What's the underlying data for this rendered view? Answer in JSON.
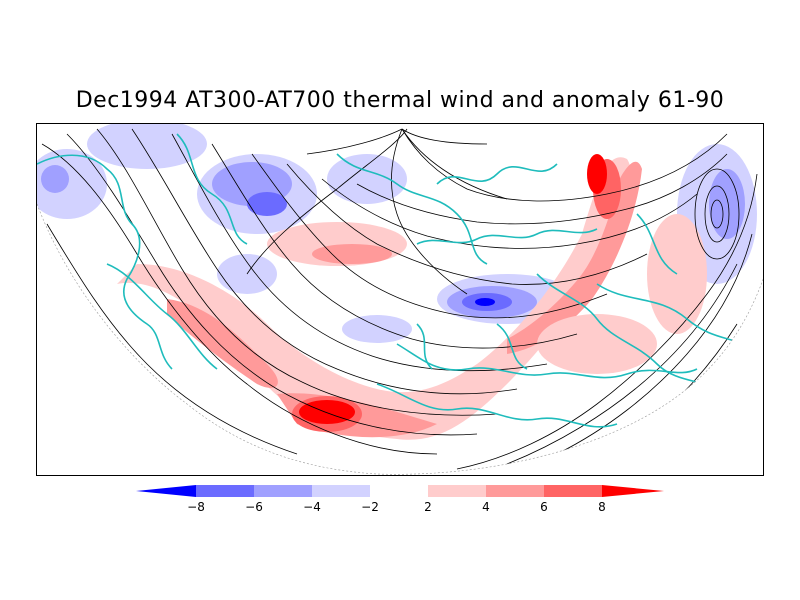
{
  "title": "Dec1994 AT300-AT700 thermal wind and anomaly 61-90",
  "colorbar": {
    "labels": [
      "−8",
      "−6",
      "−4",
      "−2",
      "2",
      "4",
      "6",
      "8"
    ],
    "colors": [
      "#0000ff",
      "#6b6bff",
      "#a0a0ff",
      "#d2d2ff",
      "#ffffff",
      "#ffcccc",
      "#ff9a9a",
      "#ff6464",
      "#ff0000"
    ]
  },
  "map": {
    "coastline_color": "#1fbcbc",
    "streamline_color": "#000000"
  }
}
